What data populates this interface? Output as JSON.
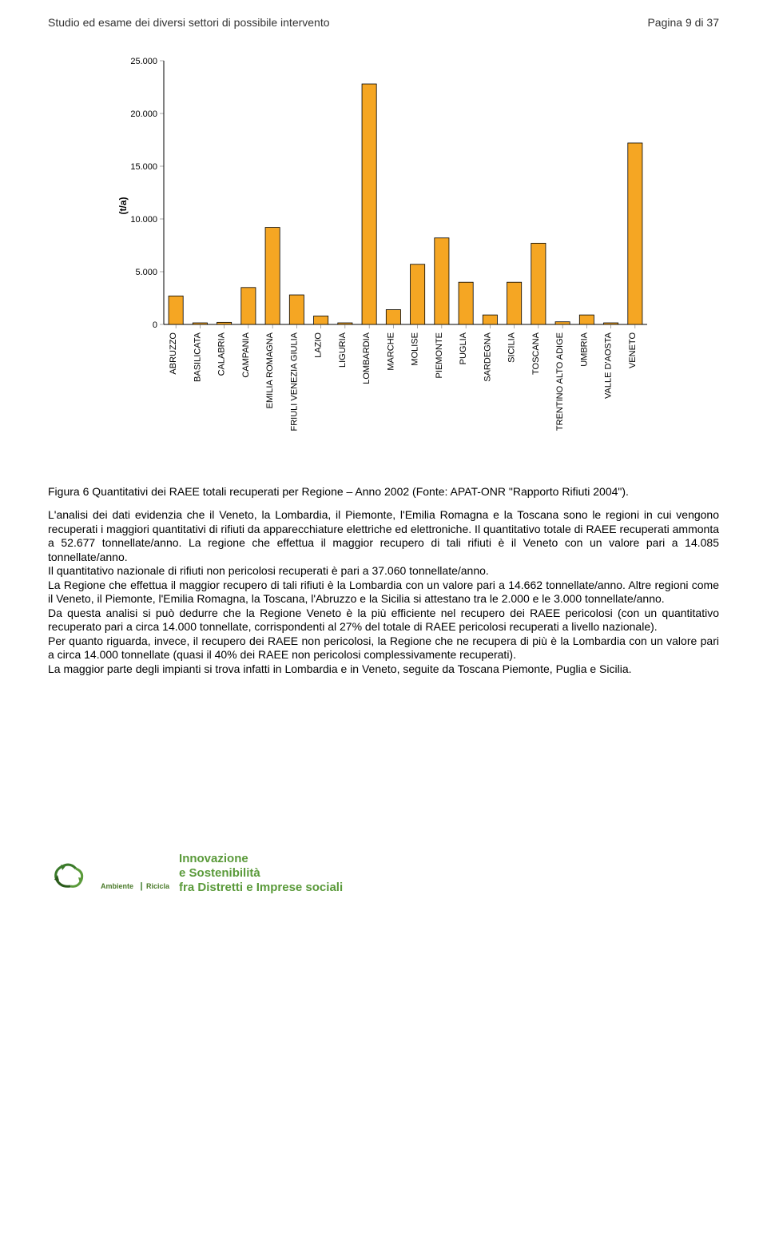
{
  "header": {
    "left": "Studio ed esame dei diversi settori di possibile intervento",
    "right": "Pagina 9 di 37"
  },
  "chart": {
    "type": "bar",
    "y_axis_label": "(t/a)",
    "ylim": [
      0,
      25000
    ],
    "ytick_step": 5000,
    "yticks": [
      {
        "val": 0,
        "label": "0"
      },
      {
        "val": 5000,
        "label": "5.000"
      },
      {
        "val": 10000,
        "label": "10.000"
      },
      {
        "val": 15000,
        "label": "15.000"
      },
      {
        "val": 20000,
        "label": "20.000"
      },
      {
        "val": 25000,
        "label": "25.000"
      }
    ],
    "bar_color": "#f5a623",
    "bar_stroke": "#000000",
    "background_color": "#ffffff",
    "grid_color": "#555555",
    "categories": [
      "ABRUZZO",
      "BASILICATA",
      "CALABRIA",
      "CAMPANIA",
      "EMILIA ROMAGNA",
      "FRIULI VENEZIA GIULIA",
      "LAZIO",
      "LIGURIA",
      "LOMBARDIA",
      "MARCHE",
      "MOLISE",
      "PIEMONTE",
      "PUGLIA",
      "SARDEGNA",
      "SICILIA",
      "TOSCANA",
      "TRENTINO ALTO ADIGE",
      "UMBRIA",
      "VALLE D'AOSTA",
      "VENETO"
    ],
    "values": [
      2700,
      150,
      200,
      3500,
      9200,
      2800,
      800,
      150,
      22800,
      1400,
      5700,
      8200,
      4000,
      900,
      4000,
      7700,
      250,
      900,
      150,
      17200
    ],
    "bar_width": 0.6
  },
  "caption": "Figura 6 Quantitativi dei RAEE totali recuperati per Regione – Anno 2002 (Fonte: APAT-ONR \"Rapporto Rifiuti 2004\").",
  "body_paragraphs": [
    "L'analisi dei dati evidenzia che il Veneto, la Lombardia, il Piemonte, l'Emilia Romagna e la Toscana sono le regioni in cui vengono recuperati i maggiori quantitativi di rifiuti da apparecchiature elettriche ed elettroniche. Il quantitativo totale di RAEE recuperati ammonta a 52.677 tonnellate/anno. La regione che effettua il maggior recupero di tali rifiuti è il Veneto con un valore pari a 14.085 tonnellate/anno.",
    "Il quantitativo nazionale di rifiuti non pericolosi recuperati è pari a 37.060 tonnellate/anno.",
    "La Regione che effettua il maggior recupero di tali rifiuti è la Lombardia con un valore pari a 14.662 tonnellate/anno. Altre regioni come il Veneto, il Piemonte, l'Emilia Romagna, la Toscana, l'Abruzzo e la Sicilia si attestano tra le 2.000 e le 3.000 tonnellate/anno.",
    "Da questa analisi si può dedurre che la Regione Veneto è la più efficiente nel recupero dei RAEE pericolosi (con un quantitativo recuperato pari a circa 14.000 tonnellate, corrispondenti al 27% del totale di RAEE pericolosi recuperati a livello nazionale).",
    "Per quanto riguarda, invece, il recupero dei RAEE non pericolosi, la Regione che ne recupera di più è la Lombardia con un valore pari a circa 14.000 tonnellate (quasi il 40% dei RAEE non pericolosi complessivamente recuperati).",
    "La maggior parte degli impianti si trova infatti in Lombardia e in Veneto, seguite da Toscana Piemonte, Puglia e Sicilia."
  ],
  "footer": {
    "logo_line1": "Ambiente",
    "logo_line2": "Ricicla",
    "title_line1": "Innovazione",
    "title_line2": "e Sostenibilità",
    "title_line3": "fra Distretti e Imprese sociali"
  }
}
